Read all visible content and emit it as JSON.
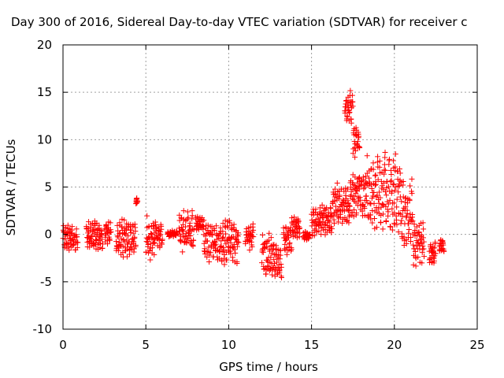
{
  "chart_data": {
    "type": "scatter",
    "title": "Day 300 of 2016, Sidereal Day-to-day VTEC variation (SDTVAR) for receiver c",
    "xlabel": "GPS time / hours",
    "ylabel": "SDTVAR / TECUs",
    "xlim": [
      0,
      25
    ],
    "ylim": [
      -10,
      20
    ],
    "xticks": [
      0,
      5,
      10,
      15,
      20,
      25
    ],
    "yticks": [
      -10,
      -5,
      0,
      5,
      10,
      15,
      20
    ],
    "xtick_labels": [
      "0",
      "5",
      "10",
      "15",
      "20",
      "25"
    ],
    "ytick_labels": [
      "-10",
      "-5",
      "0",
      "5",
      "10",
      "15",
      "20"
    ],
    "grid": true,
    "marker": "+",
    "color": "#ff0000",
    "segments": [
      {
        "x_start": 0.0,
        "x_end": 0.9,
        "y_min": -1.8,
        "y_max": 1.0
      },
      {
        "x_start": 1.4,
        "x_end": 2.4,
        "y_min": -1.8,
        "y_max": 1.5
      },
      {
        "x_start": 2.5,
        "x_end": 2.9,
        "y_min": -1.0,
        "y_max": 1.5
      },
      {
        "x_start": 3.2,
        "x_end": 4.0,
        "y_min": -2.8,
        "y_max": 1.8
      },
      {
        "x_start": 4.0,
        "x_end": 4.4,
        "y_min": -2.2,
        "y_max": 1.2
      },
      {
        "x_start": 4.4,
        "x_end": 4.5,
        "y_min": 3.2,
        "y_max": 3.9
      },
      {
        "x_start": 5.0,
        "x_end": 5.6,
        "y_min": -3.0,
        "y_max": 2.0
      },
      {
        "x_start": 5.6,
        "x_end": 6.0,
        "y_min": -1.5,
        "y_max": 1.2
      },
      {
        "x_start": 6.3,
        "x_end": 6.9,
        "y_min": -0.3,
        "y_max": 0.4
      },
      {
        "x_start": 7.0,
        "x_end": 7.9,
        "y_min": -2.0,
        "y_max": 2.6
      },
      {
        "x_start": 8.0,
        "x_end": 8.5,
        "y_min": 0.4,
        "y_max": 2.0
      },
      {
        "x_start": 8.5,
        "x_end": 9.7,
        "y_min": -3.0,
        "y_max": 1.3
      },
      {
        "x_start": 9.7,
        "x_end": 10.6,
        "y_min": -3.2,
        "y_max": 1.6
      },
      {
        "x_start": 11.0,
        "x_end": 11.5,
        "y_min": -1.8,
        "y_max": 1.2
      },
      {
        "x_start": 12.0,
        "x_end": 12.7,
        "y_min": -4.6,
        "y_max": 0.5
      },
      {
        "x_start": 12.7,
        "x_end": 13.2,
        "y_min": -5.0,
        "y_max": -1.0
      },
      {
        "x_start": 13.3,
        "x_end": 13.8,
        "y_min": -2.2,
        "y_max": 1.6
      },
      {
        "x_start": 13.8,
        "x_end": 14.3,
        "y_min": -0.5,
        "y_max": 2.0
      },
      {
        "x_start": 14.5,
        "x_end": 14.9,
        "y_min": -0.8,
        "y_max": 0.4
      },
      {
        "x_start": 15.0,
        "x_end": 16.2,
        "y_min": -0.3,
        "y_max": 3.3
      },
      {
        "x_start": 16.2,
        "x_end": 17.3,
        "y_min": 0.5,
        "y_max": 5.5
      },
      {
        "x_start": 17.0,
        "x_end": 17.5,
        "y_min": 11.5,
        "y_max": 15.3
      },
      {
        "x_start": 17.5,
        "x_end": 17.9,
        "y_min": 8.0,
        "y_max": 12.0
      },
      {
        "x_start": 17.3,
        "x_end": 18.3,
        "y_min": 1.5,
        "y_max": 7.0
      },
      {
        "x_start": 18.3,
        "x_end": 19.4,
        "y_min": 0.0,
        "y_max": 8.5
      },
      {
        "x_start": 19.4,
        "x_end": 20.4,
        "y_min": -1.0,
        "y_max": 9.0
      },
      {
        "x_start": 20.4,
        "x_end": 21.1,
        "y_min": -1.5,
        "y_max": 6.0
      },
      {
        "x_start": 21.1,
        "x_end": 21.8,
        "y_min": -3.6,
        "y_max": 1.8
      },
      {
        "x_start": 22.1,
        "x_end": 22.5,
        "y_min": -3.2,
        "y_max": -0.6
      },
      {
        "x_start": 22.7,
        "x_end": 23.0,
        "y_min": -2.0,
        "y_max": -0.2
      }
    ]
  }
}
